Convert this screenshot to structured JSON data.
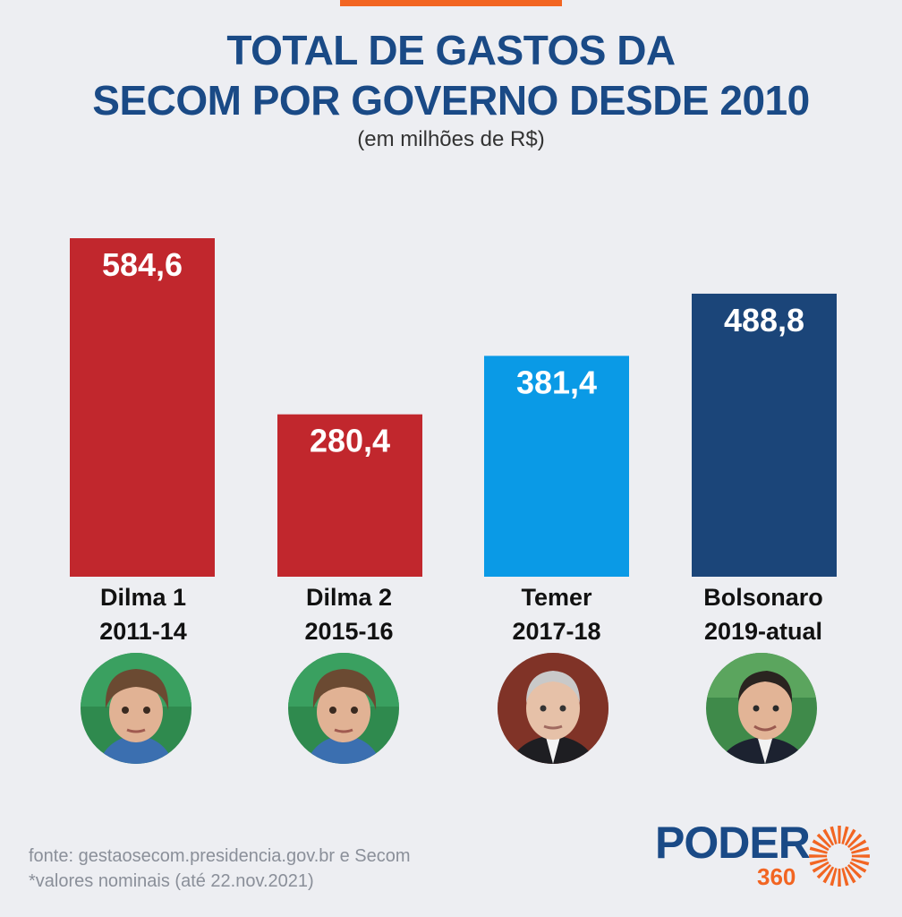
{
  "header": {
    "title_line1": "TOTAL DE GASTOS DA",
    "title_line2": "SECOM POR GOVERNO DESDE 2010",
    "subtitle": "(em milhões de R$)"
  },
  "chart_data": {
    "type": "bar",
    "title": "TOTAL DE GASTOS DA SECOM POR GOVERNO DESDE 2010",
    "subtitle": "(em milhões de R$)",
    "categories": [
      "Dilma 1",
      "Dilma 2",
      "Temer",
      "Bolsonaro"
    ],
    "periods": [
      "2011-14",
      "2015-16",
      "2017-18",
      "2019-atual"
    ],
    "values": [
      584.6,
      280.4,
      381.4,
      488.8
    ],
    "value_labels": [
      "584,6",
      "280,4",
      "381,4",
      "488,8"
    ],
    "colors": [
      "#c1272d",
      "#c1272d",
      "#0a9ae6",
      "#1b4579"
    ],
    "xlabel": "",
    "ylabel": "",
    "ylim": [
      0,
      584.6
    ],
    "grid": false,
    "legend": "none"
  },
  "footer": {
    "source": "fonte: gestaosecom.presidencia.gov.br e Secom",
    "note": "*valores nominais (até 22.nov.2021)"
  },
  "logo": {
    "word": "PODER",
    "number": "360"
  }
}
